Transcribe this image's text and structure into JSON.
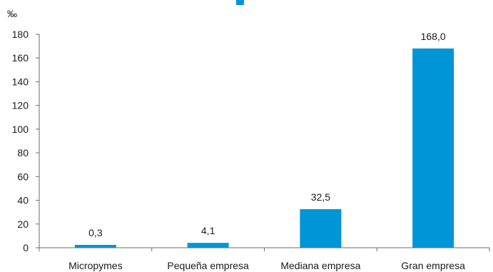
{
  "chart_data": {
    "type": "bar",
    "unit_label": "‰",
    "categories": [
      "Micropymes",
      "Pequeña empresa",
      "Mediana empresa",
      "Gran empresa"
    ],
    "values": [
      0.3,
      4.1,
      32.5,
      168.0
    ],
    "value_labels": [
      "0,3",
      "4,1",
      "32,5",
      "168,0"
    ],
    "ylim": [
      0,
      180
    ],
    "yticks": [
      0,
      20,
      40,
      60,
      80,
      100,
      120,
      140,
      160,
      180
    ],
    "grid": false,
    "colors": {
      "bar": "#0095d6",
      "axis": "#6b6b6b",
      "title_fragment": "#0095d6"
    }
  }
}
